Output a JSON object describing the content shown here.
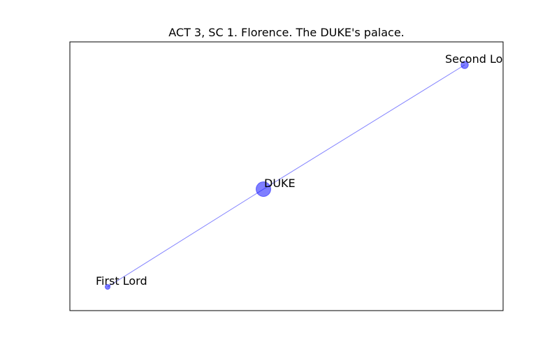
{
  "title": "ACT 3, SC 1. Florence. The DUKE's palace.",
  "colors": {
    "node": "#0000ff",
    "edge": "#0000ff",
    "frame": "#000000"
  },
  "chart_data": {
    "type": "network",
    "title": "ACT 3, SC 1. Florence. The DUKE's palace.",
    "nodes": [
      {
        "id": "DUKE",
        "label": "DUKE",
        "size": 3
      },
      {
        "id": "Second Lord",
        "label": "Second Lord",
        "size": 1.5
      },
      {
        "id": "First Lord",
        "label": "First Lord",
        "size": 1
      }
    ],
    "edges": [
      {
        "source": "DUKE",
        "target": "Second Lord"
      },
      {
        "source": "DUKE",
        "target": "First Lord"
      }
    ]
  }
}
